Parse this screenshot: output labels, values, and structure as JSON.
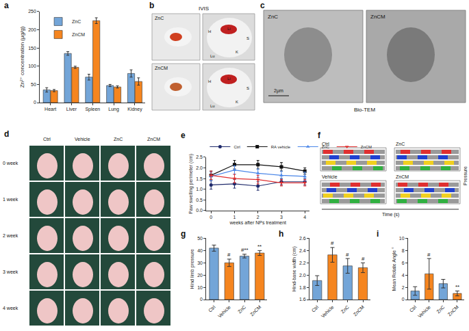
{
  "chart_data": [
    {
      "type": "bar",
      "categories": [
        "Heart",
        "Liver",
        "Spleen",
        "Lung",
        "Kidney"
      ],
      "series": [
        {
          "name": "ZnC",
          "color": "#73a5d8",
          "values": [
            35,
            135,
            70,
            47,
            80
          ],
          "errors": [
            6,
            5,
            8,
            3,
            10
          ]
        },
        {
          "name": "ZnCM",
          "color": "#f5851f",
          "values": [
            33,
            97,
            225,
            43,
            58
          ],
          "errors": [
            3,
            3,
            8,
            3,
            10
          ]
        }
      ],
      "y_label": "Zn²⁺ concentration (μg/g)",
      "ylim": [
        0,
        250
      ],
      "yticks": [
        0,
        50,
        100,
        150,
        200,
        250
      ],
      "legend": "upper left",
      "grid": false
    },
    {
      "type": "line",
      "x": [
        0,
        1,
        2,
        3,
        4
      ],
      "series": [
        {
          "name": "Ctrl",
          "color": "#1f2a6b",
          "marker": "circle",
          "values": [
            1.2,
            1.25,
            1.15,
            1.35,
            1.35
          ],
          "errors": [
            0.2,
            0.2,
            0.2,
            0.15,
            0.15
          ]
        },
        {
          "name": "RA vehicle",
          "color": "#111111",
          "marker": "square",
          "values": [
            1.65,
            2.15,
            2.15,
            2.05,
            1.85
          ],
          "errors": [
            0.2,
            0.2,
            0.2,
            0.2,
            0.15
          ]
        },
        {
          "name": "ZnC",
          "color": "#4a86e8",
          "marker": "triangle-up",
          "values": [
            1.6,
            1.9,
            1.75,
            1.65,
            1.6
          ],
          "errors": [
            0.2,
            0.2,
            0.2,
            0.2,
            0.2
          ]
        },
        {
          "name": "ZnCM",
          "color": "#e03030",
          "marker": "triangle-down",
          "values": [
            1.65,
            1.5,
            1.45,
            1.3,
            1.3
          ],
          "errors": [
            0.2,
            0.2,
            0.2,
            0.15,
            0.15
          ]
        }
      ],
      "x_label": "weeks after NPs treatment",
      "y_label": "Paw swelling perimeter (cm)",
      "xlim": [
        -0.2,
        4.2
      ],
      "xticks": [
        0,
        1,
        2,
        3,
        4
      ],
      "ylim": [
        0,
        2.5
      ],
      "yticks": [
        {
          "value": 0,
          "label": "0.0"
        },
        0.5,
        {
          "value": 1,
          "label": "1.0"
        },
        1.5,
        {
          "value": 2,
          "label": "2.0"
        },
        2.5
      ],
      "legend": "top",
      "grid": false
    },
    {
      "type": "bar",
      "categories": [
        "Ctrl",
        "Vehicle",
        "ZnC",
        "ZnCM"
      ],
      "values": [
        42,
        30,
        35.5,
        38
      ],
      "errors": [
        2.5,
        3,
        1.5,
        2
      ],
      "colors": [
        "#73a5d8",
        "#f5851f",
        "#73a5d8",
        "#f5851f"
      ],
      "y_label": "Hind limb pressure",
      "ylim": [
        0,
        50
      ],
      "yticks": [
        0,
        10,
        20,
        30,
        40,
        50
      ],
      "annotations": [
        {
          "category": "Vehicle",
          "text": "#"
        },
        {
          "category": "ZnC",
          "text": "#**"
        },
        {
          "category": "ZnCM",
          "text": "**"
        }
      ],
      "grid": false
    },
    {
      "type": "bar",
      "categories": [
        "Ctrl",
        "Vehicle",
        "ZnC",
        "ZnCM"
      ],
      "values": [
        1.91,
        2.33,
        2.15,
        2.12
      ],
      "errors": [
        0.08,
        0.12,
        0.12,
        0.08
      ],
      "colors": [
        "#73a5d8",
        "#f5851f",
        "#73a5d8",
        "#f5851f"
      ],
      "y_label": "Hind-base width (cm)",
      "ylim": [
        1.6,
        2.6
      ],
      "yticks": [
        1.6,
        1.8,
        {
          "value": 2,
          "label": "2.0"
        },
        2.2,
        2.4,
        2.6
      ],
      "annotations": [
        {
          "category": "Vehicle",
          "text": "#"
        },
        {
          "category": "ZnC",
          "text": "#"
        },
        {
          "category": "ZnCM",
          "text": "#"
        }
      ],
      "grid": false
    },
    {
      "type": "bar",
      "categories": [
        "Ctrl",
        "Vehicle",
        "ZnC",
        "ZnCM"
      ],
      "values": [
        1.4,
        4.2,
        2.6,
        1.0
      ],
      "errors": [
        0.7,
        2.5,
        0.7,
        0.4
      ],
      "colors": [
        "#73a5d8",
        "#f5851f",
        "#73a5d8",
        "#f5851f"
      ],
      "y_label": "Mean Rotate Angle °",
      "ylim": [
        0,
        10
      ],
      "yticks": [
        0,
        2,
        4,
        6,
        8,
        10
      ],
      "annotations": [
        {
          "category": "Vehicle",
          "text": "#"
        },
        {
          "category": "ZnCM",
          "text": "**"
        }
      ],
      "grid": false
    }
  ],
  "figure": {
    "panel_labels": [
      "a",
      "b",
      "c",
      "d",
      "e",
      "f",
      "g",
      "h",
      "i"
    ],
    "b": {
      "title": "IVIS",
      "rows": [
        "ZnC",
        "ZnCM"
      ],
      "organs": [
        "H",
        "Li",
        "Lu",
        "K",
        "S"
      ]
    },
    "c": {
      "panels": [
        "ZnC",
        "ZnCM"
      ],
      "scale_bar": "2μm",
      "caption": "Bio-TEM"
    },
    "d": {
      "columns": [
        "Ctrl",
        "Vehicle",
        "ZnC",
        "ZnCM"
      ],
      "rows": [
        "0 week",
        "1 week",
        "2 week",
        "3 week",
        "4 week"
      ]
    },
    "f": {
      "panels": [
        "Ctrl",
        "ZnC",
        "Vehicle",
        "ZnCM"
      ],
      "y_label": "Pressure",
      "x_label": "Time (s)"
    }
  }
}
